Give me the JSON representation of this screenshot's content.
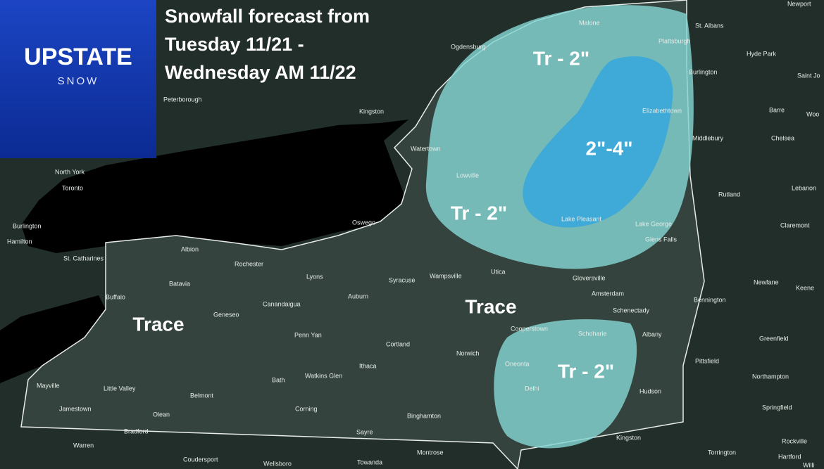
{
  "logo": {
    "brand": "UPSTATE",
    "sub": "SNOW"
  },
  "title": {
    "lines": [
      "Snowfall forecast from",
      "Tuesday 11/21 -",
      "Wednesday AM 11/22"
    ]
  },
  "zones": [
    "Tr - 2\"",
    "2\"-4\"",
    "Tr - 2\"",
    "Trace",
    "Trace",
    "Tr - 2\""
  ],
  "cities": [
    "Newport",
    "St. Albans",
    "Hyde Park",
    "Saint Jo",
    "Burlington",
    "Malone",
    "Plattsburgh",
    "Ogdensburg",
    "Peterborough",
    "Kingston",
    "Elizabethtown",
    "Barre",
    "Woo",
    "Middlebury",
    "Chelsea",
    "Watertown",
    "North York",
    "Toronto",
    "Lowville",
    "Lebanon",
    "Rutland",
    "Burlington",
    "Hamilton",
    "Oswego",
    "Lake Pleasant",
    "Lake George",
    "Claremont",
    "Glens Falls",
    "Albion",
    "St. Catharines",
    "Rochester",
    "Utica",
    "Lyons",
    "Syracuse",
    "Wampsville",
    "Gloversville",
    "Newfane",
    "Batavia",
    "Keene",
    "Buffalo",
    "Amsterdam",
    "Geneseo",
    "Canandaigua",
    "Auburn",
    "Bennington",
    "Schenectady",
    "Albany",
    "Cooperstown",
    "Schoharie",
    "Greenfield",
    "Penn Yan",
    "Cortland",
    "Norwich",
    "Pittsfield",
    "Oneonta",
    "Ithaca",
    "Watkins Glen",
    "Northampton",
    "Mayville",
    "Little Valley",
    "Bath",
    "Delhi",
    "Hudson",
    "Belmont",
    "Jamestown",
    "Corning",
    "Springfield",
    "Olean",
    "Binghamton",
    "Bradford",
    "Sayre",
    "Kingston",
    "Warren",
    "Torrington",
    "Montrose",
    "Rockville",
    "Hartford",
    "Coudersport",
    "Towanda",
    "Wellsboro",
    "Willi"
  ]
}
